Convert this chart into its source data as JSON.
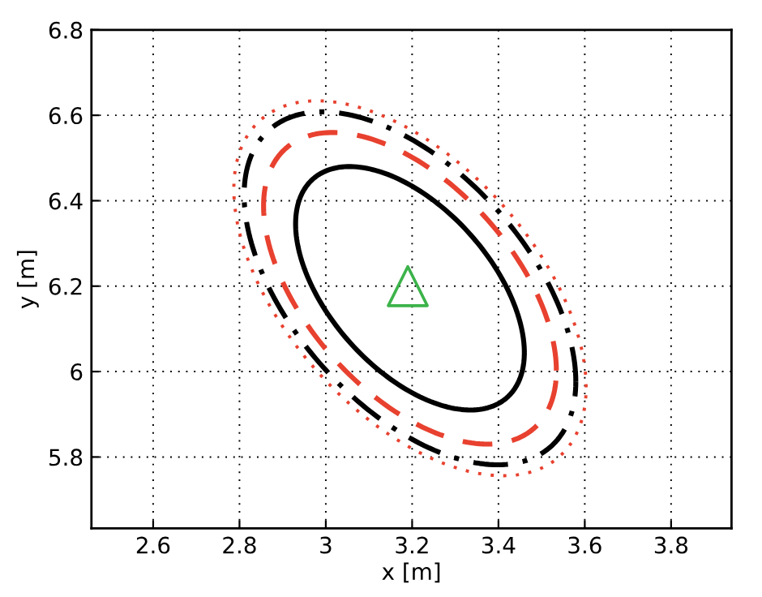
{
  "chart_data": {
    "type": "scatter",
    "xlabel": "x [m]",
    "ylabel": "y [m]",
    "xlim": [
      2.457,
      3.94
    ],
    "ylim": [
      5.633,
      6.8
    ],
    "xticks": [
      2.6,
      2.8,
      3,
      3.2,
      3.4,
      3.6,
      3.8
    ],
    "yticks": [
      5.8,
      6,
      6.2,
      6.4,
      6.6,
      6.8
    ],
    "grid": true,
    "legend": false,
    "series": [
      {
        "color": "#3cb34a",
        "marker": "triangle",
        "x": [
          3.19
        ],
        "values": [
          6.2
        ]
      }
    ]
  }
}
